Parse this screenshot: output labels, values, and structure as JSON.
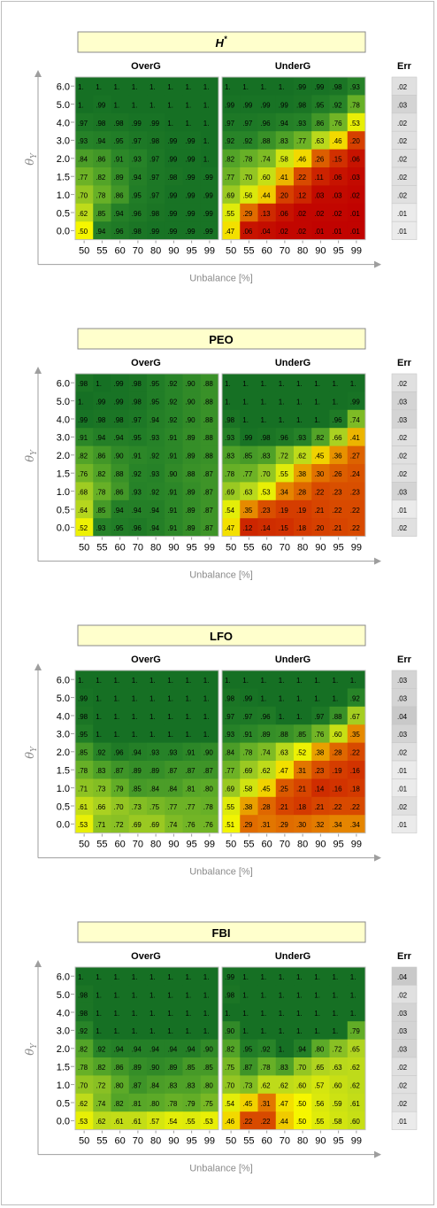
{
  "chart_data": [
    {
      "type": "heatmap",
      "title": "H*",
      "panel_labels": [
        "OverG",
        "UnderG"
      ],
      "x_categories": [
        "50",
        "55",
        "60",
        "70",
        "80",
        "90",
        "95",
        "99"
      ],
      "y_categories": [
        "0.0",
        "0.5",
        "1.0",
        "1.5",
        "2.0",
        "3.0",
        "4.0",
        "5.0",
        "6.0"
      ],
      "xlabel": "Unbalance [%]",
      "ylabel": "θY",
      "err_label": "Err",
      "rows": [
        {
          "over": [
            "1.",
            "1.",
            "1.",
            "1.",
            "1.",
            "1.",
            "1.",
            "1."
          ],
          "under": [
            "1.",
            "1.",
            "1.",
            "1.",
            ".99",
            ".99",
            ".98",
            ".93"
          ],
          "err": ".02"
        },
        {
          "over": [
            "1.",
            ".99",
            "1.",
            "1.",
            "1.",
            "1.",
            "1.",
            "1."
          ],
          "under": [
            ".99",
            ".99",
            ".99",
            ".99",
            ".98",
            ".95",
            ".92",
            ".78"
          ],
          "err": ".03"
        },
        {
          "over": [
            ".97",
            ".98",
            ".98",
            ".99",
            ".99",
            "1.",
            "1.",
            "1."
          ],
          "under": [
            ".97",
            ".97",
            ".96",
            ".94",
            ".93",
            ".86",
            ".76",
            ".53"
          ],
          "err": ".02"
        },
        {
          "over": [
            ".93",
            ".94",
            ".95",
            ".97",
            ".98",
            ".99",
            ".99",
            "1."
          ],
          "under": [
            ".92",
            ".92",
            ".88",
            ".83",
            ".77",
            ".63",
            ".46",
            ".20"
          ],
          "err": ".02"
        },
        {
          "over": [
            ".84",
            ".86",
            ".91",
            ".93",
            ".97",
            ".99",
            ".99",
            "1."
          ],
          "under": [
            ".82",
            ".78",
            ".74",
            ".58",
            ".46",
            ".26",
            ".15",
            ".06"
          ],
          "err": ".02"
        },
        {
          "over": [
            ".77",
            ".82",
            ".89",
            ".94",
            ".97",
            ".98",
            ".99",
            ".99"
          ],
          "under": [
            ".77",
            ".70",
            ".60",
            ".41",
            ".22",
            ".11",
            ".06",
            ".03"
          ],
          "err": ".02"
        },
        {
          "over": [
            ".70",
            ".78",
            ".86",
            ".95",
            ".97",
            ".99",
            ".99",
            ".99"
          ],
          "under": [
            ".69",
            ".56",
            ".44",
            ".20",
            ".12",
            ".03",
            ".03",
            ".02"
          ],
          "err": ".02"
        },
        {
          "over": [
            ".62",
            ".85",
            ".94",
            ".96",
            ".98",
            ".99",
            ".99",
            ".99"
          ],
          "under": [
            ".55",
            ".29",
            ".13",
            ".06",
            ".02",
            ".02",
            ".02",
            ".01"
          ],
          "err": ".01"
        },
        {
          "over": [
            ".50",
            ".94",
            ".96",
            ".98",
            ".99",
            ".99",
            ".99",
            ".99"
          ],
          "under": [
            ".47",
            ".06",
            ".04",
            ".02",
            ".02",
            ".01",
            ".01",
            ".01"
          ],
          "err": ".01"
        }
      ]
    },
    {
      "type": "heatmap",
      "title": "PEO",
      "panel_labels": [
        "OverG",
        "UnderG"
      ],
      "x_categories": [
        "50",
        "55",
        "60",
        "70",
        "80",
        "90",
        "95",
        "99"
      ],
      "y_categories": [
        "0.0",
        "0.5",
        "1.0",
        "1.5",
        "2.0",
        "3.0",
        "4.0",
        "5.0",
        "6.0"
      ],
      "xlabel": "Unbalance [%]",
      "ylabel": "θY",
      "err_label": "Err",
      "rows": [
        {
          "over": [
            ".98",
            "1.",
            ".99",
            ".98",
            ".95",
            ".92",
            ".90",
            ".88"
          ],
          "under": [
            "1.",
            "1.",
            "1.",
            "1.",
            "1.",
            "1.",
            "1.",
            "1."
          ],
          "err": ".02"
        },
        {
          "over": [
            "1.",
            ".99",
            ".99",
            ".98",
            ".95",
            ".92",
            ".90",
            ".88"
          ],
          "under": [
            "1.",
            "1.",
            "1.",
            "1.",
            "1.",
            "1.",
            "1.",
            ".99"
          ],
          "err": ".03"
        },
        {
          "over": [
            ".99",
            ".98",
            ".98",
            ".97",
            ".94",
            ".92",
            ".90",
            ".88"
          ],
          "under": [
            ".98",
            "1.",
            "1.",
            "1.",
            "1.",
            "1.",
            ".96",
            ".74"
          ],
          "err": ".03"
        },
        {
          "over": [
            ".91",
            ".94",
            ".94",
            ".95",
            ".93",
            ".91",
            ".89",
            ".88"
          ],
          "under": [
            ".93",
            ".99",
            ".98",
            ".96",
            ".93",
            ".82",
            ".66",
            ".41"
          ],
          "err": ".02"
        },
        {
          "over": [
            ".82",
            ".86",
            ".90",
            ".91",
            ".92",
            ".91",
            ".89",
            ".88"
          ],
          "under": [
            ".83",
            ".85",
            ".83",
            ".72",
            ".62",
            ".45",
            ".36",
            ".27"
          ],
          "err": ".02"
        },
        {
          "over": [
            ".76",
            ".82",
            ".88",
            ".92",
            ".93",
            ".90",
            ".88",
            ".87"
          ],
          "under": [
            ".78",
            ".77",
            ".70",
            ".55",
            ".38",
            ".30",
            ".26",
            ".24"
          ],
          "err": ".02"
        },
        {
          "over": [
            ".68",
            ".78",
            ".86",
            ".93",
            ".92",
            ".91",
            ".89",
            ".87"
          ],
          "under": [
            ".69",
            ".63",
            ".53",
            ".34",
            ".28",
            ".22",
            ".23",
            ".23"
          ],
          "err": ".03"
        },
        {
          "over": [
            ".64",
            ".85",
            ".94",
            ".94",
            ".94",
            ".91",
            ".89",
            ".87"
          ],
          "under": [
            ".54",
            ".35",
            ".23",
            ".19",
            ".19",
            ".21",
            ".22",
            ".22"
          ],
          "err": ".01"
        },
        {
          "over": [
            ".52",
            ".93",
            ".95",
            ".96",
            ".94",
            ".91",
            ".89",
            ".87"
          ],
          "under": [
            ".47",
            ".12",
            ".14",
            ".15",
            ".18",
            ".20",
            ".21",
            ".22"
          ],
          "err": ".02"
        }
      ]
    },
    {
      "type": "heatmap",
      "title": "LFO",
      "panel_labels": [
        "OverG",
        "UnderG"
      ],
      "x_categories": [
        "50",
        "55",
        "60",
        "70",
        "80",
        "90",
        "95",
        "99"
      ],
      "y_categories": [
        "0.0",
        "0.5",
        "1.0",
        "1.5",
        "2.0",
        "3.0",
        "4.0",
        "5.0",
        "6.0"
      ],
      "xlabel": "Unbalance [%]",
      "ylabel": "θY",
      "err_label": "Err",
      "rows": [
        {
          "over": [
            "1.",
            "1.",
            "1.",
            "1.",
            "1.",
            "1.",
            "1.",
            "1."
          ],
          "under": [
            "1.",
            "1.",
            "1.",
            "1.",
            "1.",
            "1.",
            "1.",
            "1."
          ],
          "err": ".03"
        },
        {
          "over": [
            ".99",
            "1.",
            "1.",
            "1.",
            "1.",
            "1.",
            "1.",
            "1."
          ],
          "under": [
            ".98",
            ".99",
            "1.",
            "1.",
            "1.",
            "1.",
            "1.",
            ".92"
          ],
          "err": ".03"
        },
        {
          "over": [
            ".98",
            "1.",
            "1.",
            "1.",
            "1.",
            "1.",
            "1.",
            "1."
          ],
          "under": [
            ".97",
            ".97",
            ".96",
            "1.",
            "1.",
            ".97",
            ".88",
            ".67"
          ],
          "err": ".04"
        },
        {
          "over": [
            ".95",
            "1.",
            "1.",
            "1.",
            "1.",
            "1.",
            "1.",
            "1."
          ],
          "under": [
            ".93",
            ".91",
            ".89",
            ".88",
            ".85",
            ".76",
            ".60",
            ".35"
          ],
          "err": ".03"
        },
        {
          "over": [
            ".85",
            ".92",
            ".96",
            ".94",
            ".93",
            ".93",
            ".91",
            ".90"
          ],
          "under": [
            ".84",
            ".78",
            ".74",
            ".63",
            ".52",
            ".38",
            ".28",
            ".22"
          ],
          "err": ".02"
        },
        {
          "over": [
            ".78",
            ".83",
            ".87",
            ".89",
            ".89",
            ".87",
            ".87",
            ".87"
          ],
          "under": [
            ".77",
            ".69",
            ".62",
            ".47",
            ".31",
            ".23",
            ".19",
            ".16"
          ],
          "err": ".01"
        },
        {
          "over": [
            ".71",
            ".73",
            ".79",
            ".85",
            ".84",
            ".84",
            ".81",
            ".80"
          ],
          "under": [
            ".69",
            ".58",
            ".45",
            ".25",
            ".21",
            ".14",
            ".16",
            ".18"
          ],
          "err": ".01"
        },
        {
          "over": [
            ".61",
            ".66",
            ".70",
            ".73",
            ".75",
            ".77",
            ".77",
            ".78"
          ],
          "under": [
            ".55",
            ".38",
            ".28",
            ".21",
            ".18",
            ".21",
            ".22",
            ".22"
          ],
          "err": ".02"
        },
        {
          "over": [
            ".53",
            ".71",
            ".72",
            ".69",
            ".69",
            ".74",
            ".76",
            ".76"
          ],
          "under": [
            ".51",
            ".29",
            ".31",
            ".29",
            ".30",
            ".32",
            ".34",
            ".34"
          ],
          "err": ".01"
        }
      ]
    },
    {
      "type": "heatmap",
      "title": "FBI",
      "panel_labels": [
        "OverG",
        "UnderG"
      ],
      "x_categories": [
        "50",
        "55",
        "60",
        "70",
        "80",
        "90",
        "95",
        "99"
      ],
      "y_categories": [
        "0.0",
        "0.5",
        "1.0",
        "1.5",
        "2.0",
        "3.0",
        "4.0",
        "5.0",
        "6.0"
      ],
      "xlabel": "Unbalance [%]",
      "ylabel": "θY",
      "err_label": "Err",
      "rows": [
        {
          "over": [
            "1.",
            "1.",
            "1.",
            "1.",
            "1.",
            "1.",
            "1.",
            "1."
          ],
          "under": [
            ".99",
            "1.",
            "1.",
            "1.",
            "1.",
            "1.",
            "1.",
            "1."
          ],
          "err": ".04"
        },
        {
          "over": [
            ".98",
            "1.",
            "1.",
            "1.",
            "1.",
            "1.",
            "1.",
            "1."
          ],
          "under": [
            ".98",
            "1.",
            "1.",
            "1.",
            "1.",
            "1.",
            "1.",
            "1."
          ],
          "err": ".02"
        },
        {
          "over": [
            ".98",
            "1.",
            "1.",
            "1.",
            "1.",
            "1.",
            "1.",
            "1."
          ],
          "under": [
            "1.",
            "1.",
            "1.",
            "1.",
            "1.",
            "1.",
            "1.",
            "1."
          ],
          "err": ".03"
        },
        {
          "over": [
            ".92",
            "1.",
            "1.",
            "1.",
            "1.",
            "1.",
            "1.",
            "1."
          ],
          "under": [
            ".90",
            "1.",
            "1.",
            "1.",
            "1.",
            "1.",
            "1.",
            ".79"
          ],
          "err": ".03"
        },
        {
          "over": [
            ".82",
            ".92",
            ".94",
            ".94",
            ".94",
            ".94",
            ".94",
            ".90"
          ],
          "under": [
            ".82",
            ".95",
            ".92",
            "1.",
            ".94",
            ".80",
            ".72",
            ".65"
          ],
          "err": ".03"
        },
        {
          "over": [
            ".78",
            ".82",
            ".86",
            ".89",
            ".90",
            ".89",
            ".85",
            ".85"
          ],
          "under": [
            ".75",
            ".87",
            ".78",
            ".83",
            ".70",
            ".65",
            ".63",
            ".62"
          ],
          "err": ".02"
        },
        {
          "over": [
            ".70",
            ".72",
            ".80",
            ".87",
            ".84",
            ".83",
            ".83",
            ".80"
          ],
          "under": [
            ".70",
            ".73",
            ".62",
            ".62",
            ".60",
            ".57",
            ".60",
            ".62"
          ],
          "err": ".02"
        },
        {
          "over": [
            ".62",
            ".74",
            ".82",
            ".81",
            ".80",
            ".78",
            ".79",
            ".75"
          ],
          "under": [
            ".54",
            ".45",
            ".31",
            ".47",
            ".50",
            ".56",
            ".59",
            ".61"
          ],
          "err": ".02"
        },
        {
          "over": [
            ".53",
            ".62",
            ".61",
            ".61",
            ".57",
            ".54",
            ".55",
            ".53"
          ],
          "under": [
            ".46",
            ".22",
            ".22",
            ".44",
            ".50",
            ".55",
            ".58",
            ".60"
          ],
          "err": ".01"
        }
      ]
    }
  ]
}
